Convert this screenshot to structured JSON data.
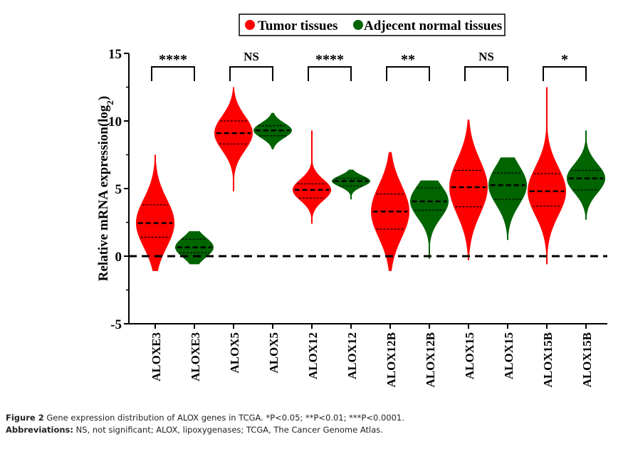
{
  "chart_data": {
    "type": "violin",
    "title": "",
    "ylabel": "Relative mRNA expression(log2)",
    "ylabel_main": "Relative mRNA expression(log",
    "ylabel_sub": "2",
    "ylabel_close": ")",
    "xlabel": "",
    "ylim": [
      -5,
      15
    ],
    "yticks": [
      -5,
      0,
      5,
      10,
      15
    ],
    "ytick_labels": [
      "-5",
      "0",
      "5",
      "10",
      "15"
    ],
    "reference_line": 0,
    "legend": {
      "position": "top",
      "entries": [
        {
          "label": "Tumor tissues",
          "color": "#ff0000"
        },
        {
          "label": "Adjecent normal tissues",
          "color": "#006400"
        }
      ]
    },
    "categories": [
      "ALOXE3",
      "ALOXE3",
      "ALOX5",
      "ALOX5",
      "ALOX12",
      "ALOX12",
      "ALOX12B",
      "ALOX12B",
      "ALOX15",
      "ALOX15",
      "ALOX15B",
      "ALOX15B"
    ],
    "violins": [
      {
        "gene": "ALOXE3",
        "group": "Tumor tissues",
        "min": -1.1,
        "max": 7.5,
        "q1": 1.4,
        "median": 2.45,
        "q3": 3.8
      },
      {
        "gene": "ALOXE3",
        "group": "Adjecent normal tissues",
        "min": -0.6,
        "max": 1.85,
        "q1": 0.25,
        "median": 0.65,
        "q3": 1.25
      },
      {
        "gene": "ALOX5",
        "group": "Tumor tissues",
        "min": 4.8,
        "max": 12.5,
        "q1": 8.3,
        "median": 9.1,
        "q3": 10.0
      },
      {
        "gene": "ALOX5",
        "group": "Adjecent normal tissues",
        "min": 7.9,
        "max": 10.6,
        "q1": 8.9,
        "median": 9.3,
        "q3": 9.65
      },
      {
        "gene": "ALOX12",
        "group": "Tumor tissues",
        "min": 2.4,
        "max": 9.3,
        "q1": 4.3,
        "median": 4.9,
        "q3": 5.35
      },
      {
        "gene": "ALOX12",
        "group": "Adjecent normal tissues",
        "min": 4.2,
        "max": 6.4,
        "q1": 5.2,
        "median": 5.55,
        "q3": 5.75
      },
      {
        "gene": "ALOX12B",
        "group": "Tumor tissues",
        "min": -1.1,
        "max": 7.7,
        "q1": 2.0,
        "median": 3.3,
        "q3": 4.6
      },
      {
        "gene": "ALOX12B",
        "group": "Adjecent normal tissues",
        "min": -0.2,
        "max": 5.6,
        "q1": 3.4,
        "median": 4.05,
        "q3": 5.05
      },
      {
        "gene": "ALOX15",
        "group": "Tumor tissues",
        "min": -0.3,
        "max": 10.1,
        "q1": 3.65,
        "median": 5.1,
        "q3": 6.35
      },
      {
        "gene": "ALOX15",
        "group": "Adjecent normal tissues",
        "min": 1.2,
        "max": 7.3,
        "q1": 4.2,
        "median": 5.25,
        "q3": 6.15
      },
      {
        "gene": "ALOX15B",
        "group": "Tumor tissues",
        "min": -0.6,
        "max": 12.5,
        "q1": 3.7,
        "median": 4.8,
        "q3": 6.1
      },
      {
        "gene": "ALOX15B",
        "group": "Adjecent normal tissues",
        "min": 2.7,
        "max": 9.3,
        "q1": 4.9,
        "median": 5.75,
        "q3": 6.35
      }
    ],
    "significance": [
      {
        "pair": [
          "ALOXE3 Tumor",
          "ALOXE3 Normal"
        ],
        "label": "****"
      },
      {
        "pair": [
          "ALOX5 Tumor",
          "ALOX5 Normal"
        ],
        "label": "NS"
      },
      {
        "pair": [
          "ALOX12 Tumor",
          "ALOX12 Normal"
        ],
        "label": "****"
      },
      {
        "pair": [
          "ALOX12B Tumor",
          "ALOX12B Normal"
        ],
        "label": "**"
      },
      {
        "pair": [
          "ALOX15 Tumor",
          "ALOX15 Normal"
        ],
        "label": "NS"
      },
      {
        "pair": [
          "ALOX15B Tumor",
          "ALOX15B Normal"
        ],
        "label": "*"
      }
    ]
  },
  "caption": {
    "figure_label": "Figure 2",
    "figure_text": " Gene expression distribution of ALOX genes in TCGA. *P<0.05; **P<0.01; ***P<0.0001.",
    "abbrev_label": "Abbreviations:",
    "abbrev_text": " NS, not significant; ALOX, lipoxygenases; TCGA, The Cancer Genome Atlas."
  }
}
